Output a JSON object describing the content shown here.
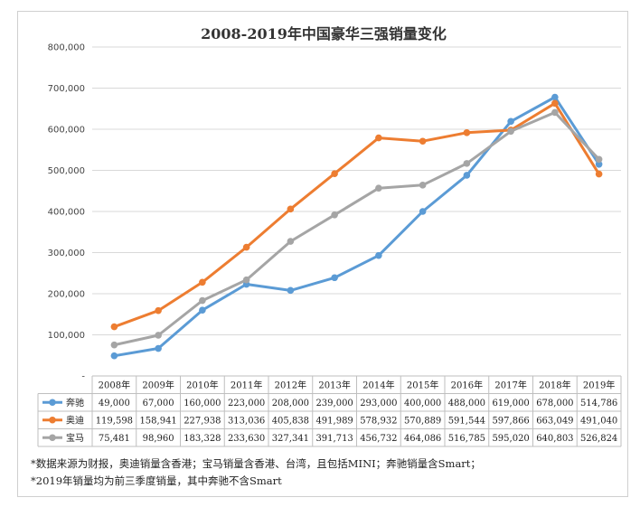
{
  "chart_data": {
    "type": "line",
    "title": "2008-2019年中国豪华三强销量变化",
    "xlabel": "",
    "ylabel": "",
    "ylim": [
      0,
      800000
    ],
    "yticks": [
      0,
      100000,
      200000,
      300000,
      400000,
      500000,
      600000,
      700000,
      800000
    ],
    "ytick_labels": [
      "-",
      "100,000",
      "200,000",
      "300,000",
      "400,000",
      "500,000",
      "600,000",
      "700,000",
      "800,000"
    ],
    "grid": true,
    "legend": "data-table-left",
    "categories": [
      "2008年",
      "2009年",
      "2010年",
      "2011年",
      "2012年",
      "2013年",
      "2014年",
      "2015年",
      "2016年",
      "2017年",
      "2018年",
      "2019年"
    ],
    "series": [
      {
        "name": "奔驰",
        "color": "#5b9bd5",
        "values": [
          49000,
          67000,
          160000,
          223000,
          208000,
          239000,
          293000,
          400000,
          488000,
          619000,
          678000,
          514786
        ],
        "labels": [
          "49,000",
          "67,000",
          "160,000",
          "223,000",
          "208,000",
          "239,000",
          "293,000",
          "400,000",
          "488,000",
          "619,000",
          "678,000",
          "514,786"
        ]
      },
      {
        "name": "奥迪",
        "color": "#ed7d31",
        "values": [
          119598,
          158941,
          227938,
          313036,
          405838,
          491989,
          578932,
          570889,
          591544,
          597866,
          663049,
          491040
        ],
        "labels": [
          "119,598",
          "158,941",
          "227,938",
          "313,036",
          "405,838",
          "491,989",
          "578,932",
          "570,889",
          "591,544",
          "597,866",
          "663,049",
          "491,040"
        ]
      },
      {
        "name": "宝马",
        "color": "#a5a5a5",
        "values": [
          75481,
          98960,
          183328,
          233630,
          327341,
          391713,
          456732,
          464086,
          516785,
          595020,
          640803,
          526824
        ],
        "labels": [
          "75,481",
          "98,960",
          "183,328",
          "233,630",
          "327,341",
          "391,713",
          "456,732",
          "464,086",
          "516,785",
          "595,020",
          "640,803",
          "526,824"
        ]
      }
    ]
  },
  "notes": {
    "line1": "*数据来源为财报，奥迪销量含香港；宝马销量含香港、台湾，且包括MINI；奔驰销量含Smart；",
    "line2": "*2019年销量均为前三季度销量，其中奔驰不含Smart"
  }
}
